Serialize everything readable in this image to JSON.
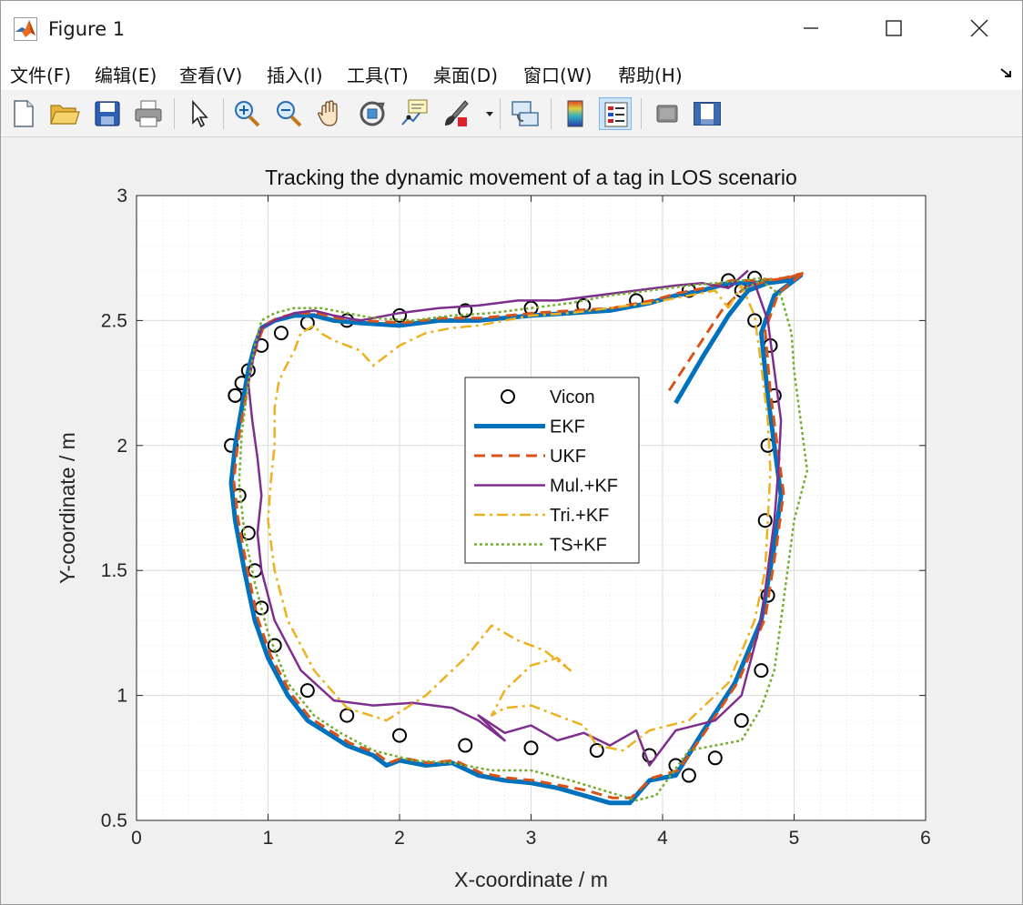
{
  "window": {
    "title": "Figure 1",
    "icon": "matlab-logo-icon"
  },
  "menu": {
    "items": [
      "文件(F)",
      "编辑(E)",
      "查看(V)",
      "插入(I)",
      "工具(T)",
      "桌面(D)",
      "窗口(W)",
      "帮助(H)"
    ]
  },
  "toolbar": {
    "buttons": [
      "new-figure-icon",
      "open-folder-icon",
      "save-icon",
      "print-icon",
      "pointer-icon",
      "zoom-in-icon",
      "zoom-out-icon",
      "pan-hand-icon",
      "rotate-3d-icon",
      "data-cursor-icon",
      "brush-icon",
      "link-plot-icon",
      "colorbar-icon",
      "legend-icon",
      "hide-plot-tools-icon",
      "show-plot-tools-icon"
    ],
    "active": "legend-icon"
  },
  "chart_data": {
    "type": "line",
    "title": "Tracking the dynamic movement of a tag in LOS scenario",
    "xlabel": "X-coordinate / m",
    "ylabel": "Y-coordinate / m",
    "xlim": [
      0,
      6
    ],
    "ylim": [
      0.5,
      3
    ],
    "xticks": [
      "0",
      "1",
      "2",
      "3",
      "4",
      "5",
      "6"
    ],
    "yticks": [
      "0.5",
      "1",
      "1.5",
      "2",
      "2.5",
      "3"
    ],
    "grid": true,
    "minor_grid": true,
    "legend_position": "center",
    "series": [
      {
        "name": "Vicon",
        "style": "markers",
        "color": "#000000",
        "x": [
          0.75,
          0.72,
          0.78,
          0.85,
          0.9,
          0.95,
          1.05,
          1.3,
          1.6,
          2.0,
          2.5,
          3.0,
          3.5,
          3.9,
          4.1,
          4.2,
          4.4,
          4.6,
          4.75,
          4.8,
          4.78,
          4.8,
          4.85,
          4.82,
          4.7,
          4.6,
          4.7,
          4.5,
          4.2,
          3.8,
          3.4,
          3.0,
          2.5,
          2.0,
          1.6,
          1.3,
          1.1,
          0.95,
          0.85,
          0.8,
          0.75
        ],
        "y": [
          2.2,
          2.0,
          1.8,
          1.65,
          1.5,
          1.35,
          1.2,
          1.02,
          0.92,
          0.84,
          0.8,
          0.79,
          0.78,
          0.76,
          0.72,
          0.68,
          0.75,
          0.9,
          1.1,
          1.4,
          1.7,
          2.0,
          2.2,
          2.4,
          2.5,
          2.62,
          2.67,
          2.66,
          2.62,
          2.58,
          2.56,
          2.55,
          2.54,
          2.52,
          2.5,
          2.49,
          2.45,
          2.4,
          2.3,
          2.25,
          2.2
        ]
      },
      {
        "name": "EKF",
        "style": "solid",
        "color": "#0072BD",
        "x": [
          4.1,
          4.3,
          4.5,
          4.65,
          4.8,
          4.95,
          5.05,
          4.85,
          4.75,
          4.8,
          4.85,
          4.9,
          4.85,
          4.75,
          4.55,
          4.3,
          4.1,
          3.9,
          3.8,
          3.75,
          3.6,
          3.4,
          3.2,
          3.0,
          2.8,
          2.6,
          2.4,
          2.2,
          2.0,
          1.9,
          1.8,
          1.6,
          1.45,
          1.3,
          1.15,
          1.0,
          0.9,
          0.82,
          0.75,
          0.72,
          0.75,
          0.8,
          0.85,
          0.9,
          0.95,
          1.05,
          1.2,
          1.35,
          1.5,
          1.7,
          2.0,
          2.3,
          2.6,
          3.0,
          3.3,
          3.6,
          3.9,
          4.1,
          4.3,
          4.5,
          4.7,
          4.9,
          5.05
        ],
        "y": [
          2.17,
          2.35,
          2.52,
          2.62,
          2.65,
          2.66,
          2.68,
          2.6,
          2.45,
          2.2,
          2.0,
          1.8,
          1.6,
          1.3,
          1.05,
          0.85,
          0.68,
          0.66,
          0.6,
          0.57,
          0.57,
          0.6,
          0.63,
          0.65,
          0.66,
          0.68,
          0.73,
          0.72,
          0.74,
          0.72,
          0.76,
          0.8,
          0.85,
          0.9,
          1.0,
          1.15,
          1.3,
          1.5,
          1.7,
          1.85,
          2.0,
          2.15,
          2.3,
          2.4,
          2.47,
          2.5,
          2.52,
          2.52,
          2.5,
          2.49,
          2.48,
          2.5,
          2.5,
          2.52,
          2.53,
          2.54,
          2.57,
          2.6,
          2.62,
          2.65,
          2.65,
          2.66,
          2.68
        ]
      },
      {
        "name": "UKF",
        "style": "dashed",
        "color": "#D95319",
        "x": [
          4.05,
          4.25,
          4.45,
          4.62,
          4.8,
          4.95,
          5.07,
          4.88,
          4.78,
          4.82,
          4.87,
          4.92,
          4.87,
          4.78,
          4.58,
          4.33,
          4.12,
          3.92,
          3.82,
          3.76,
          3.62,
          3.42,
          3.22,
          3.02,
          2.82,
          2.62,
          2.42,
          2.22,
          2.02,
          1.92,
          1.82,
          1.62,
          1.47,
          1.32,
          1.17,
          1.02,
          0.92,
          0.84,
          0.77,
          0.74,
          0.77,
          0.82,
          0.87,
          0.92,
          0.97,
          1.07,
          1.22,
          1.37,
          1.52,
          1.72,
          2.02,
          2.32,
          2.62,
          3.02,
          3.32,
          3.62,
          3.92,
          4.12,
          4.32,
          4.52,
          4.72,
          4.92,
          5.07
        ],
        "y": [
          2.22,
          2.38,
          2.54,
          2.63,
          2.66,
          2.67,
          2.69,
          2.61,
          2.46,
          2.21,
          2.01,
          1.81,
          1.61,
          1.31,
          1.06,
          0.86,
          0.7,
          0.67,
          0.62,
          0.59,
          0.59,
          0.62,
          0.64,
          0.66,
          0.67,
          0.69,
          0.74,
          0.73,
          0.75,
          0.73,
          0.77,
          0.81,
          0.86,
          0.91,
          1.01,
          1.16,
          1.31,
          1.51,
          1.71,
          1.86,
          2.01,
          2.16,
          2.31,
          2.41,
          2.48,
          2.51,
          2.53,
          2.53,
          2.51,
          2.5,
          2.49,
          2.51,
          2.51,
          2.53,
          2.54,
          2.55,
          2.58,
          2.61,
          2.63,
          2.66,
          2.66,
          2.67,
          2.69
        ]
      },
      {
        "name": "Mul.+KF",
        "style": "solid",
        "color": "#7E2F8E",
        "x": [
          4.6,
          4.7,
          4.8,
          4.85,
          4.9,
          4.88,
          4.85,
          4.8,
          4.75,
          4.6,
          4.4,
          4.1,
          3.9,
          3.8,
          3.6,
          3.4,
          3.2,
          3.0,
          2.8,
          2.6,
          2.8,
          2.6,
          2.4,
          2.1,
          1.8,
          1.5,
          1.25,
          1.05,
          0.95,
          0.92,
          0.95,
          0.92,
          0.88,
          0.85,
          0.9,
          0.95,
          1.05,
          1.2,
          1.35,
          1.5,
          1.7,
          2.0,
          2.3,
          2.6,
          2.9,
          3.2,
          3.5,
          3.8,
          4.1,
          4.3,
          4.5,
          4.65
        ],
        "y": [
          2.62,
          2.65,
          2.5,
          2.3,
          2.1,
          1.9,
          1.7,
          1.5,
          1.3,
          1.0,
          0.9,
          0.86,
          0.72,
          0.86,
          0.8,
          0.85,
          0.82,
          0.88,
          0.85,
          0.92,
          0.82,
          0.9,
          0.95,
          0.97,
          0.96,
          0.98,
          1.1,
          1.3,
          1.5,
          1.65,
          1.8,
          1.95,
          2.1,
          2.25,
          2.38,
          2.47,
          2.5,
          2.53,
          2.54,
          2.52,
          2.5,
          2.53,
          2.55,
          2.56,
          2.58,
          2.58,
          2.6,
          2.62,
          2.64,
          2.65,
          2.63,
          2.7
        ]
      },
      {
        "name": "Tri.+KF",
        "style": "dashdot",
        "color": "#EDB120",
        "x": [
          4.5,
          4.6,
          4.7,
          4.75,
          4.8,
          4.82,
          4.8,
          4.78,
          4.7,
          4.5,
          4.2,
          3.9,
          3.7,
          3.5,
          3.4,
          3.2,
          3.0,
          2.8,
          2.7,
          2.8,
          3.0,
          3.2,
          3.3,
          3.1,
          2.9,
          2.7,
          2.5,
          2.2,
          1.9,
          1.6,
          1.35,
          1.15,
          1.05,
          1.0,
          1.02,
          1.05,
          1.05,
          1.08,
          1.12,
          1.2,
          1.25,
          1.35,
          1.4,
          1.5,
          1.7,
          1.8,
          1.9,
          2.0,
          2.2,
          2.4,
          2.6,
          2.8,
          3.0,
          3.3,
          3.6,
          3.9,
          4.2,
          4.4,
          4.5
        ],
        "y": [
          2.55,
          2.64,
          2.52,
          2.32,
          2.1,
          1.9,
          1.7,
          1.5,
          1.3,
          1.05,
          0.9,
          0.86,
          0.78,
          0.8,
          0.88,
          0.92,
          0.96,
          0.95,
          0.92,
          1.02,
          1.12,
          1.15,
          1.1,
          1.18,
          1.22,
          1.28,
          1.15,
          1.0,
          0.9,
          0.95,
          1.1,
          1.3,
          1.5,
          1.7,
          1.85,
          2.0,
          2.15,
          2.25,
          2.3,
          2.38,
          2.45,
          2.48,
          2.45,
          2.42,
          2.38,
          2.32,
          2.36,
          2.4,
          2.45,
          2.47,
          2.48,
          2.5,
          2.52,
          2.53,
          2.55,
          2.57,
          2.6,
          2.62,
          2.55
        ]
      },
      {
        "name": "TS+KF",
        "style": "dotted",
        "color": "#77AC30",
        "x": [
          4.6,
          4.75,
          4.9,
          4.98,
          5.0,
          5.05,
          5.1,
          5.0,
          4.95,
          4.9,
          4.85,
          4.75,
          4.6,
          4.4,
          4.2,
          3.95,
          3.8,
          3.55,
          3.3,
          3.0,
          2.7,
          2.4,
          2.1,
          1.8,
          1.55,
          1.35,
          1.15,
          1.0,
          0.9,
          0.82,
          0.78,
          0.8,
          0.85,
          0.9,
          0.95,
          1.05,
          1.2,
          1.4,
          1.6,
          1.8,
          2.1,
          2.4,
          2.7,
          3.0,
          3.3,
          3.6,
          3.9,
          4.2,
          4.4,
          4.6,
          4.75,
          4.85
        ],
        "y": [
          2.62,
          2.66,
          2.6,
          2.45,
          2.3,
          2.1,
          1.9,
          1.7,
          1.5,
          1.3,
          1.1,
          0.95,
          0.82,
          0.8,
          0.78,
          0.6,
          0.58,
          0.62,
          0.66,
          0.7,
          0.7,
          0.73,
          0.74,
          0.78,
          0.85,
          0.92,
          1.05,
          1.25,
          1.45,
          1.65,
          1.85,
          2.05,
          2.25,
          2.4,
          2.5,
          2.53,
          2.55,
          2.55,
          2.53,
          2.51,
          2.5,
          2.52,
          2.53,
          2.55,
          2.57,
          2.6,
          2.62,
          2.64,
          2.65,
          2.66,
          2.67,
          2.66
        ]
      }
    ]
  }
}
